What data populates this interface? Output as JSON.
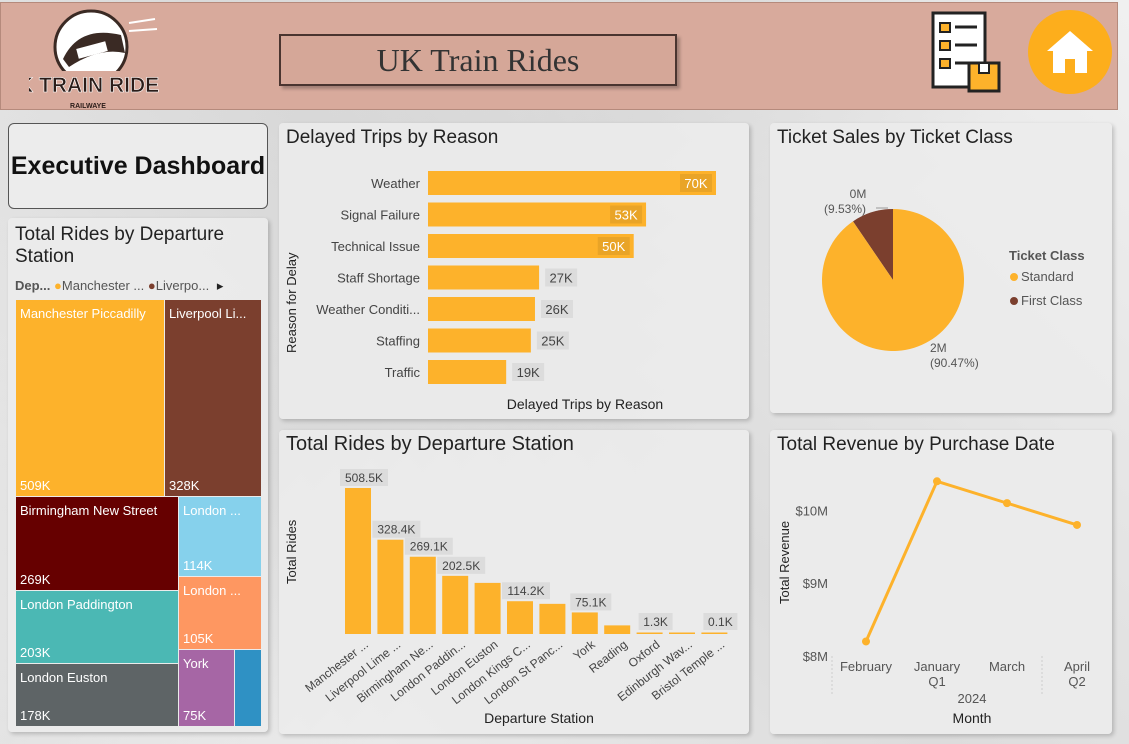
{
  "header": {
    "logo_text": "UK TRAIN RIDES",
    "logo_sub": "RAILWAYE",
    "title": "UK Train Rides"
  },
  "icons": {
    "report": "checklist-document-icon",
    "home": "home-icon"
  },
  "colors": {
    "accent": "#fdb22b",
    "brown": "#7b3f2e",
    "header": "#d8aa9c"
  },
  "exec_label": "Executive Dashboard",
  "treemap": {
    "title": "Total Rides by Departure Station",
    "legend_label": "Dep...",
    "legend_items": [
      {
        "label": "Manchester ...",
        "color": "#fdb22b"
      },
      {
        "label": "Liverpo...",
        "color": "#7b3f2e"
      }
    ],
    "tiles": [
      {
        "name": "Manchester Piccadilly",
        "value": "509K",
        "color": "#fdb22b"
      },
      {
        "name": "Liverpool Li...",
        "value": "328K",
        "color": "#7b3f2e"
      },
      {
        "name": "Birmingham New Street",
        "value": "269K",
        "color": "#660000"
      },
      {
        "name": "London ...",
        "value": "114K",
        "color": "#86d1ec"
      },
      {
        "name": "London Paddington",
        "value": "203K",
        "color": "#4bb8b4"
      },
      {
        "name": "London ...",
        "value": "105K",
        "color": "#fe9761"
      },
      {
        "name": "London Euston",
        "value": "178K",
        "color": "#5e6466"
      },
      {
        "name": "York",
        "value": "75K",
        "color": "#a666a5"
      },
      {
        "name": "",
        "value": "",
        "color": "#2f91c4"
      }
    ]
  },
  "chart_data": [
    {
      "type": "bar",
      "orientation": "horizontal",
      "title": "Delayed Trips by Reason",
      "xlabel": "Delayed Trips by Reason",
      "ylabel": "Reason for Delay",
      "categories": [
        "Weather",
        "Signal Failure",
        "Technical Issue",
        "Staff Shortage",
        "Weather Conditi...",
        "Staffing",
        "Traffic"
      ],
      "values": [
        70,
        53,
        50,
        27,
        26,
        25,
        19
      ],
      "labels": [
        "70K",
        "53K",
        "50K",
        "27K",
        "26K",
        "25K",
        "19K"
      ]
    },
    {
      "type": "pie",
      "title": "Ticket Sales by Ticket Class",
      "legend_title": "Ticket Class",
      "series": [
        {
          "name": "Standard",
          "value": 90.47,
          "label": "2M",
          "pct": "(90.47%)",
          "color": "#fdb22b"
        },
        {
          "name": "First Class",
          "value": 9.53,
          "label": "0M",
          "pct": "(9.53%)",
          "color": "#7b3f2e"
        }
      ]
    },
    {
      "type": "bar",
      "title": "Total Rides by Departure Station",
      "xlabel": "Departure Station",
      "ylabel": "Total Rides",
      "categories": [
        "Manchester ...",
        "Liverpool Lime ...",
        "Birmingham Ne...",
        "London Paddin...",
        "London Euston",
        "London Kings C...",
        "London St Panc...",
        "York",
        "Reading",
        "Oxford",
        "Edinburgh Wav...",
        "Bristol Temple ..."
      ],
      "values": [
        508.5,
        328.4,
        269.1,
        202.5,
        178,
        114.2,
        105,
        75.1,
        30,
        1.3,
        0.5,
        0.1
      ],
      "labels": [
        "508.5K",
        "328.4K",
        "269.1K",
        "202.5K",
        "",
        "114.2K",
        "",
        "75.1K",
        "",
        "1.3K",
        "",
        "0.1K"
      ]
    },
    {
      "type": "line",
      "title": "Total Revenue by Purchase Date",
      "xlabel": "Month",
      "ylabel": "Total Revenue",
      "x": [
        "February",
        "January",
        "March",
        "April"
      ],
      "x_sub": [
        "",
        "Q1",
        "",
        "Q2"
      ],
      "year_label": "2024",
      "y": [
        8.2,
        10.4,
        10.1,
        9.8
      ],
      "y_ticks": [
        "$8M",
        "$9M",
        "$10M"
      ],
      "ylim": [
        8,
        10.5
      ]
    }
  ]
}
